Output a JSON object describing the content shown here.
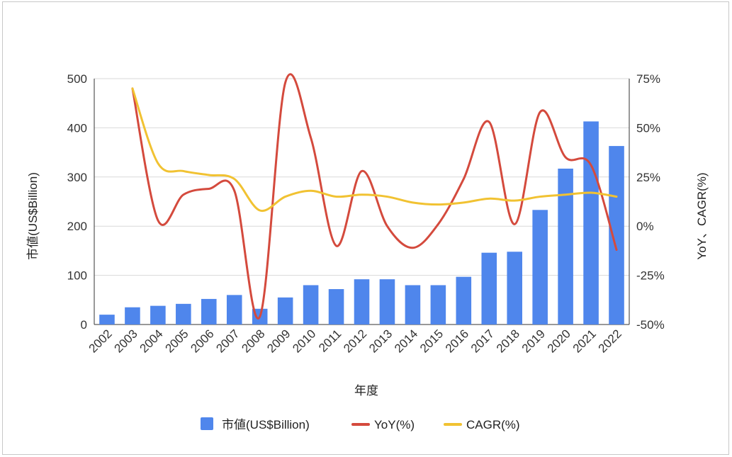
{
  "chart_data": {
    "type": "combo-bar-line",
    "title": "",
    "xlabel": "年度",
    "ylabel_left": "市値(US$Billion)",
    "ylabel_right": "YoY、CAGR(%)",
    "categories": [
      "2002",
      "2003",
      "2004",
      "2005",
      "2006",
      "2007",
      "2008",
      "2009",
      "2010",
      "2011",
      "2012",
      "2013",
      "2014",
      "2015",
      "2016",
      "2017",
      "2018",
      "2019",
      "2020",
      "2021",
      "2022"
    ],
    "y_left_range": [
      0,
      500
    ],
    "y_left_ticks": [
      "0",
      "100",
      "200",
      "300",
      "400",
      "500"
    ],
    "y_right_range": [
      -50,
      75
    ],
    "y_right_ticks": [
      "-50%",
      "-25%",
      "0%",
      "25%",
      "50%",
      "75%"
    ],
    "grid": true,
    "legend_position": "bottom",
    "series": [
      {
        "name": "市値(US$Billion)",
        "type": "bar",
        "axis": "left",
        "color": "#4f86ec",
        "values": [
          20,
          35,
          38,
          42,
          52,
          60,
          32,
          55,
          80,
          72,
          92,
          92,
          80,
          80,
          97,
          146,
          148,
          233,
          317,
          413,
          363
        ]
      },
      {
        "name": "YoY(%)",
        "type": "line",
        "axis": "right",
        "color": "#d44a3d",
        "values": [
          null,
          70,
          3,
          16,
          19,
          18,
          -46,
          73,
          45,
          -10,
          28,
          0,
          -11,
          1,
          24,
          53,
          1,
          58,
          35,
          31,
          -12
        ]
      },
      {
        "name": "CAGR(%)",
        "type": "line",
        "axis": "right",
        "color": "#f1c232",
        "values": [
          null,
          70,
          32,
          28,
          26,
          24,
          8,
          15,
          18,
          15,
          16,
          15,
          12,
          11,
          12,
          14,
          13,
          15,
          16,
          17,
          15
        ]
      }
    ]
  }
}
